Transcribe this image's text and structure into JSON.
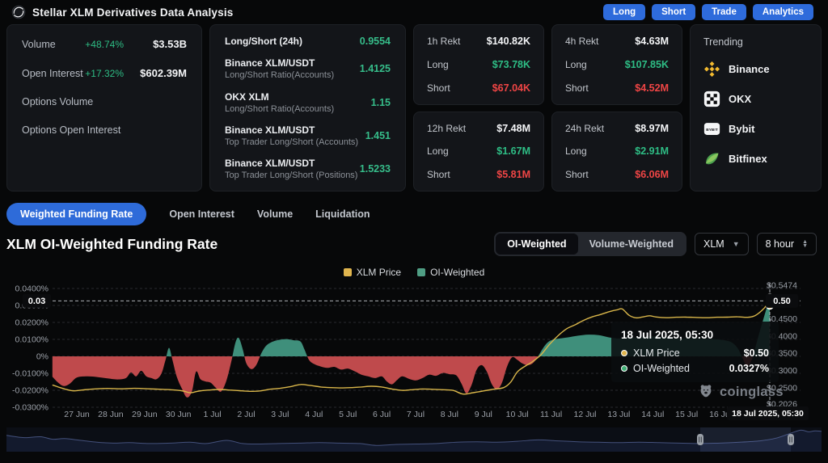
{
  "header": {
    "title": "Stellar XLM Derivatives Data Analysis",
    "actions": [
      "Long",
      "Short",
      "Trade",
      "Analytics"
    ]
  },
  "panels": {
    "market": {
      "rows": [
        {
          "label": "Volume",
          "pct": "+48.74%",
          "value": "$3.53B"
        },
        {
          "label": "Open Interest",
          "pct": "+17.32%",
          "value": "$602.39M"
        },
        {
          "label": "Options Volume",
          "pct": "",
          "value": ""
        },
        {
          "label": "Options Open Interest",
          "pct": "",
          "value": ""
        }
      ]
    },
    "ratios": {
      "rows": [
        {
          "title": "Long/Short (24h)",
          "sub": "",
          "value": "0.9554"
        },
        {
          "title": "Binance XLM/USDT",
          "sub": "Long/Short Ratio(Accounts)",
          "value": "1.4125"
        },
        {
          "title": "OKX XLM",
          "sub": "Long/Short Ratio(Accounts)",
          "value": "1.15"
        },
        {
          "title": "Binance XLM/USDT",
          "sub": "Top Trader Long/Short (Accounts)",
          "value": "1.451"
        },
        {
          "title": "Binance XLM/USDT",
          "sub": "Top Trader Long/Short (Positions)",
          "value": "1.5233"
        }
      ]
    },
    "rekt": [
      {
        "period": "1h Rekt",
        "total": "$140.82K",
        "long_label": "Long",
        "long": "$73.78K",
        "short_label": "Short",
        "short": "$67.04K"
      },
      {
        "period": "4h Rekt",
        "total": "$4.63M",
        "long_label": "Long",
        "long": "$107.85K",
        "short_label": "Short",
        "short": "$4.52M"
      },
      {
        "period": "12h Rekt",
        "total": "$7.48M",
        "long_label": "Long",
        "long": "$1.67M",
        "short_label": "Short",
        "short": "$5.81M"
      },
      {
        "period": "24h Rekt",
        "total": "$8.97M",
        "long_label": "Long",
        "long": "$2.91M",
        "short_label": "Short",
        "short": "$6.06M"
      }
    ],
    "trending": {
      "title": "Trending",
      "exchanges": [
        "Binance",
        "OKX",
        "Bybit",
        "Bitfinex"
      ]
    }
  },
  "tabs": {
    "items": [
      "Weighted Funding Rate",
      "Open Interest",
      "Volume",
      "Liquidation"
    ],
    "active": 0
  },
  "chart_header": {
    "title": "XLM OI-Weighted Funding Rate",
    "toggle": [
      "OI-Weighted",
      "Volume-Weighted"
    ],
    "toggle_active": 0,
    "symbol_select": "XLM",
    "interval_select": "8 hour"
  },
  "watermark": "coinglass",
  "chart_data": {
    "type": "area+line",
    "title": "XLM OI-Weighted Funding Rate",
    "legend": [
      {
        "label": "XLM Price",
        "color": "#e0b54e"
      },
      {
        "label": "OI-Weighted",
        "color": "#4f9e84"
      }
    ],
    "left_axis": {
      "unit": "%",
      "max": 0.04,
      "min": -0.03,
      "tick_values": [
        0.04,
        0.03,
        0.02,
        0.01,
        0,
        -0.01,
        -0.02,
        -0.03
      ],
      "tick_labels": [
        "0.0400%",
        "0.0300%",
        "0.0200%",
        "0.0100%",
        "0%",
        "-0.0100%",
        "-0.0200%",
        "-0.0300%"
      ]
    },
    "right_axis": {
      "unit": "$",
      "max": 0.5474,
      "min": 0.2026,
      "tick_values": [
        0.5474,
        0.5,
        0.45,
        0.4,
        0.35,
        0.3,
        0.25,
        0.2026
      ],
      "tick_labels": [
        "$0.5474",
        "$0.5000",
        "$0.4500",
        "$0.4000",
        "$0.3500",
        "$0.3000",
        "$0.2500",
        "$0.2026"
      ]
    },
    "x_tick_labels": [
      "27 Jun",
      "28 Jun",
      "29 Jun",
      "30 Jun",
      "1 Jul",
      "2 Jul",
      "3 Jul",
      "4 Jul",
      "5 Jul",
      "6 Jul",
      "7 Jul",
      "8 Jul",
      "9 Jul",
      "10 Jul",
      "11 Jul",
      "12 Jul",
      "13 Jul",
      "14 Jul",
      "15 Jul",
      "16 Jul"
    ],
    "crosshair": {
      "x_label": "18 Jul 2025, 05:30",
      "left_label": "0.03",
      "right_label": "0.50",
      "price": 0.5,
      "funding_pct": 0.0327
    },
    "tooltip": {
      "title": "18 Jul 2025, 05:30",
      "rows": [
        {
          "label": "XLM Price",
          "value": "$0.50",
          "color": "#e0b54e"
        },
        {
          "label": "OI-Weighted",
          "value": "0.0327%",
          "color": "#3fae74"
        }
      ]
    },
    "colors": {
      "area_pos": "#3f8f7b",
      "area_neg": "#bf4a4c",
      "price_line": "#d9b64a",
      "grid": "#282a2f",
      "axis_text": "#9ba0a8",
      "crosshair": "#d7dbe0"
    },
    "series": {
      "funding_pct": [
        [
          -0.72,
          -0.012
        ],
        [
          -0.55,
          -0.0155
        ],
        [
          -0.38,
          -0.0175
        ],
        [
          -0.2,
          -0.016
        ],
        [
          0,
          -0.0125
        ],
        [
          0.3,
          -0.0118
        ],
        [
          0.6,
          -0.0122
        ],
        [
          0.9,
          -0.013
        ],
        [
          1.2,
          -0.0136
        ],
        [
          1.45,
          -0.0128
        ],
        [
          1.6,
          -0.0095
        ],
        [
          1.75,
          -0.0118
        ],
        [
          1.9,
          -0.0085
        ],
        [
          2.05,
          -0.0118
        ],
        [
          2.2,
          -0.0128
        ],
        [
          2.35,
          -0.0135
        ],
        [
          2.5,
          -0.01
        ],
        [
          2.62,
          -0.002
        ],
        [
          2.72,
          0.005
        ],
        [
          2.82,
          -0.002
        ],
        [
          2.95,
          -0.012
        ],
        [
          3.1,
          -0.019
        ],
        [
          3.25,
          -0.0242
        ],
        [
          3.4,
          -0.0205
        ],
        [
          3.52,
          -0.009
        ],
        [
          3.65,
          -0.0135
        ],
        [
          3.8,
          -0.0148
        ],
        [
          3.95,
          -0.0155
        ],
        [
          4.1,
          -0.0185
        ],
        [
          4.25,
          -0.0208
        ],
        [
          4.4,
          -0.0152
        ],
        [
          4.55,
          -0.004
        ],
        [
          4.68,
          0.008
        ],
        [
          4.78,
          0.0108
        ],
        [
          4.9,
          0.004
        ],
        [
          5,
          -0.004
        ],
        [
          5.15,
          -0.0075
        ],
        [
          5.3,
          -0.005
        ],
        [
          5.45,
          0.002
        ],
        [
          5.6,
          0.0065
        ],
        [
          5.8,
          0.0088
        ],
        [
          6,
          0.0098
        ],
        [
          6.2,
          0.0102
        ],
        [
          6.4,
          0.0095
        ],
        [
          6.6,
          0.0088
        ],
        [
          6.72,
          0.004
        ],
        [
          6.85,
          -0.002
        ],
        [
          7,
          -0.0045
        ],
        [
          7.2,
          -0.006
        ],
        [
          7.4,
          -0.0068
        ],
        [
          7.6,
          -0.0062
        ],
        [
          7.8,
          -0.0078
        ],
        [
          8,
          -0.0072
        ],
        [
          8.2,
          -0.0088
        ],
        [
          8.4,
          -0.0108
        ],
        [
          8.6,
          -0.0118
        ],
        [
          8.8,
          -0.0128
        ],
        [
          9,
          -0.0118
        ],
        [
          9.15,
          -0.0148
        ],
        [
          9.3,
          -0.0165
        ],
        [
          9.45,
          -0.014
        ],
        [
          9.6,
          -0.0118
        ],
        [
          9.8,
          -0.0132
        ],
        [
          10,
          -0.0142
        ],
        [
          10.2,
          -0.0128
        ],
        [
          10.4,
          -0.0108
        ],
        [
          10.6,
          -0.0115
        ],
        [
          10.8,
          -0.0098
        ],
        [
          11,
          -0.0105
        ],
        [
          11.2,
          -0.0112
        ],
        [
          11.35,
          -0.016
        ],
        [
          11.5,
          -0.0218
        ],
        [
          11.65,
          -0.017
        ],
        [
          11.8,
          -0.008
        ],
        [
          11.95,
          -0.0052
        ],
        [
          12.1,
          -0.009
        ],
        [
          12.25,
          -0.0165
        ],
        [
          12.4,
          -0.0195
        ],
        [
          12.55,
          -0.0155
        ],
        [
          12.7,
          -0.006
        ],
        [
          12.85,
          -0.0005
        ],
        [
          13,
          -0.002
        ],
        [
          13.15,
          -0.0042
        ],
        [
          13.3,
          -0.0052
        ],
        [
          13.45,
          -0.0042
        ],
        [
          13.6,
          -0.0005
        ],
        [
          13.75,
          0.0045
        ],
        [
          13.9,
          0.0082
        ],
        [
          14.05,
          0.0098
        ],
        [
          14.25,
          0.0105
        ],
        [
          14.5,
          0.0112
        ],
        [
          14.8,
          0.0122
        ],
        [
          15.1,
          0.0128
        ],
        [
          15.4,
          0.0125
        ],
        [
          15.7,
          0.0112
        ],
        [
          16,
          0.0105
        ],
        [
          16.3,
          0.0108
        ],
        [
          16.6,
          0.0112
        ],
        [
          16.9,
          0.0118
        ],
        [
          17.2,
          0.0115
        ],
        [
          17.5,
          0.0108
        ],
        [
          17.8,
          0.0104
        ],
        [
          18.1,
          0.0108
        ],
        [
          18.4,
          0.0105
        ],
        [
          18.7,
          0.0104
        ],
        [
          19,
          0.0098
        ],
        [
          19.3,
          0.0085
        ],
        [
          19.5,
          0.005
        ],
        [
          19.65,
          -0.001
        ],
        [
          19.78,
          -0.0058
        ],
        [
          19.9,
          -0.003
        ],
        [
          20,
          0.003
        ],
        [
          20.1,
          0.0105
        ],
        [
          20.25,
          0.021
        ],
        [
          20.38,
          0.0295
        ],
        [
          20.45,
          0.0327
        ]
      ],
      "price_usd": [
        [
          -0.72,
          0.258
        ],
        [
          -0.5,
          0.2505
        ],
        [
          -0.3,
          0.2445
        ],
        [
          -0.1,
          0.2408
        ],
        [
          0.15,
          0.2432
        ],
        [
          0.5,
          0.2462
        ],
        [
          0.9,
          0.2478
        ],
        [
          1.3,
          0.2468
        ],
        [
          1.7,
          0.2482
        ],
        [
          2.1,
          0.2468
        ],
        [
          2.5,
          0.2452
        ],
        [
          2.9,
          0.2432
        ],
        [
          3.15,
          0.2402
        ],
        [
          3.35,
          0.2352
        ],
        [
          3.6,
          0.2402
        ],
        [
          3.9,
          0.2432
        ],
        [
          4.2,
          0.2448
        ],
        [
          4.5,
          0.2432
        ],
        [
          4.8,
          0.2412
        ],
        [
          5.1,
          0.2395
        ],
        [
          5.4,
          0.2405
        ],
        [
          5.7,
          0.2455
        ],
        [
          6,
          0.2482
        ],
        [
          6.3,
          0.2528
        ],
        [
          6.6,
          0.2592
        ],
        [
          6.9,
          0.2562
        ],
        [
          7.2,
          0.2522
        ],
        [
          7.5,
          0.2502
        ],
        [
          7.8,
          0.2492
        ],
        [
          8.1,
          0.2502
        ],
        [
          8.4,
          0.2522
        ],
        [
          8.7,
          0.2542
        ],
        [
          9,
          0.2522
        ],
        [
          9.3,
          0.2462
        ],
        [
          9.6,
          0.2422
        ],
        [
          9.9,
          0.2442
        ],
        [
          10.2,
          0.2462
        ],
        [
          10.5,
          0.2452
        ],
        [
          10.8,
          0.2442
        ],
        [
          11.1,
          0.2422
        ],
        [
          11.4,
          0.2315
        ],
        [
          11.7,
          0.2355
        ],
        [
          12,
          0.2405
        ],
        [
          12.3,
          0.2455
        ],
        [
          12.6,
          0.2502
        ],
        [
          12.8,
          0.2655
        ],
        [
          13,
          0.2955
        ],
        [
          13.2,
          0.3105
        ],
        [
          13.45,
          0.3255
        ],
        [
          13.7,
          0.3455
        ],
        [
          13.95,
          0.3755
        ],
        [
          14.2,
          0.4005
        ],
        [
          14.45,
          0.4205
        ],
        [
          14.7,
          0.4322
        ],
        [
          14.95,
          0.4452
        ],
        [
          15.2,
          0.4552
        ],
        [
          15.45,
          0.4622
        ],
        [
          15.7,
          0.4702
        ],
        [
          15.95,
          0.4762
        ],
        [
          16.1,
          0.4785
        ],
        [
          16.3,
          0.4602
        ],
        [
          16.5,
          0.4528
        ],
        [
          16.7,
          0.4552
        ],
        [
          16.9,
          0.4588
        ],
        [
          17.1,
          0.4552
        ],
        [
          17.4,
          0.4532
        ],
        [
          17.7,
          0.4545
        ],
        [
          18,
          0.4548
        ],
        [
          18.3,
          0.4538
        ],
        [
          18.6,
          0.4532
        ],
        [
          18.9,
          0.4545
        ],
        [
          19.2,
          0.4548
        ],
        [
          19.5,
          0.4558
        ],
        [
          19.8,
          0.4542
        ],
        [
          20,
          0.4582
        ],
        [
          20.15,
          0.4682
        ],
        [
          20.3,
          0.4822
        ],
        [
          20.45,
          0.5
        ]
      ]
    },
    "navigator": {
      "points": [
        [
          8,
          0.72
        ],
        [
          30,
          0.62
        ],
        [
          50,
          0.66
        ],
        [
          65,
          0.55
        ],
        [
          80,
          0.58
        ],
        [
          100,
          0.5
        ],
        [
          120,
          0.42
        ],
        [
          140,
          0.38
        ],
        [
          160,
          0.4
        ],
        [
          185,
          0.36
        ],
        [
          210,
          0.38
        ],
        [
          235,
          0.42
        ],
        [
          255,
          0.36
        ],
        [
          280,
          0.5
        ],
        [
          300,
          0.36
        ],
        [
          320,
          0.34
        ],
        [
          345,
          0.36
        ],
        [
          370,
          0.38
        ],
        [
          395,
          0.4
        ],
        [
          420,
          0.38
        ],
        [
          445,
          0.36
        ],
        [
          465,
          0.28
        ],
        [
          490,
          0.32
        ],
        [
          515,
          0.34
        ],
        [
          540,
          0.36
        ],
        [
          565,
          0.42
        ],
        [
          590,
          0.44
        ],
        [
          615,
          0.42
        ],
        [
          640,
          0.46
        ],
        [
          665,
          0.52
        ],
        [
          690,
          0.48
        ],
        [
          715,
          0.44
        ],
        [
          740,
          0.42
        ],
        [
          765,
          0.4
        ],
        [
          790,
          0.42
        ],
        [
          815,
          0.4
        ],
        [
          840,
          0.38
        ],
        [
          865,
          0.36
        ],
        [
          890,
          0.38
        ],
        [
          915,
          0.42
        ],
        [
          940,
          0.48
        ],
        [
          960,
          0.6
        ],
        [
          975,
          0.78
        ],
        [
          990,
          0.95
        ],
        [
          1000,
          0.88
        ],
        [
          1008,
          0.92
        ],
        [
          1016,
          0.9
        ]
      ],
      "selection": {
        "start": 866,
        "end": 978
      }
    }
  }
}
